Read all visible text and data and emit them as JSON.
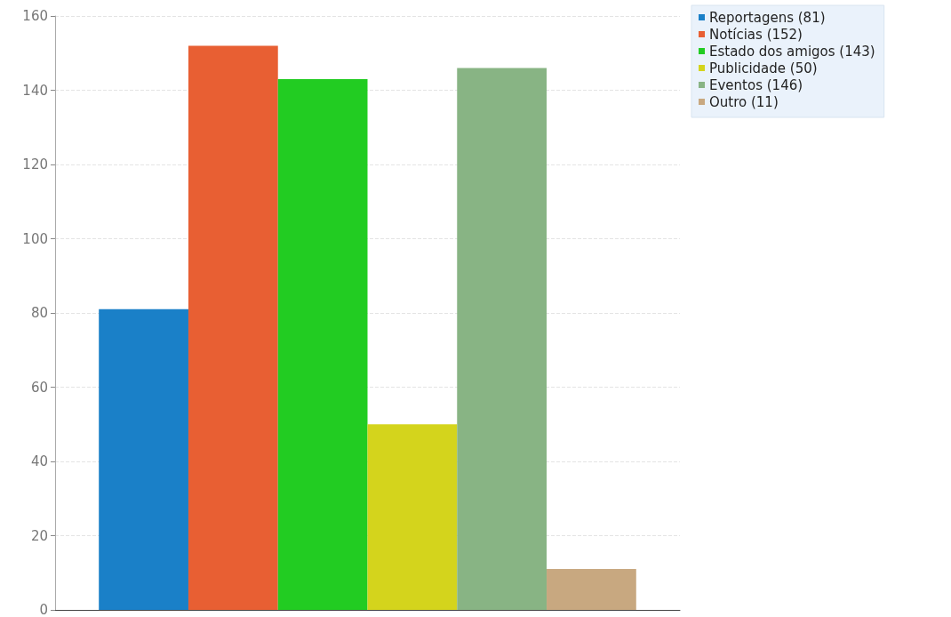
{
  "chart_data": {
    "type": "bar",
    "categories": [
      null
    ],
    "series": [
      {
        "name": "Reportagens (81)",
        "color": "#1a80c8",
        "values": [
          81
        ]
      },
      {
        "name": "Notícias (152)",
        "color": "#e85f33",
        "values": [
          152
        ]
      },
      {
        "name": "Estado dos amigos (143)",
        "color": "#22cc22",
        "values": [
          143
        ]
      },
      {
        "name": "Publicidade (50)",
        "color": "#d4d41c",
        "values": [
          50
        ]
      },
      {
        "name": "Eventos (146)",
        "color": "#88b484",
        "values": [
          146
        ]
      },
      {
        "name": "Outro (11)",
        "color": "#c8a880",
        "values": [
          11
        ]
      }
    ],
    "ylim": [
      0,
      160
    ],
    "yticks": [
      0,
      20,
      40,
      60,
      80,
      100,
      120,
      140,
      160
    ],
    "grid": "y",
    "legend": "top right"
  }
}
